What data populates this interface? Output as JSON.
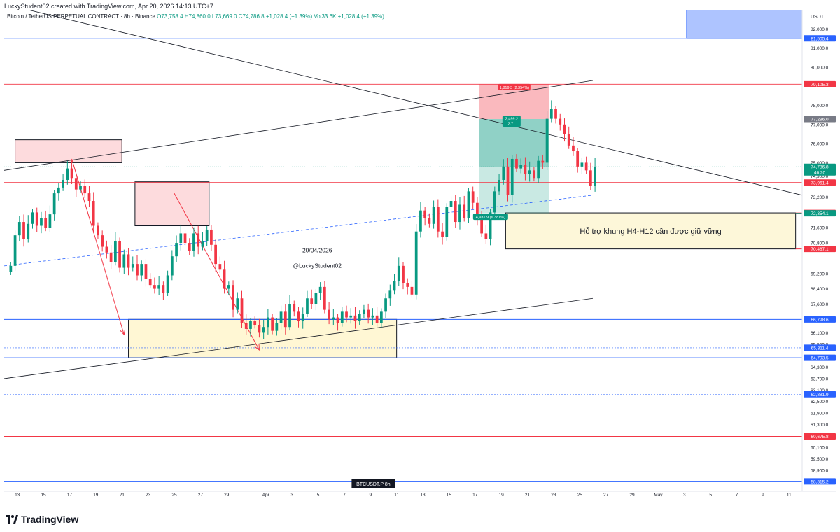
{
  "header": {
    "credit": "LuckyStudent02 created with TradingView.com, Apr 20, 2026 14:13 UTC+7",
    "symbol_line": "Bitcoin / TetherUS PERPETUAL CONTRACT · 8h · Binance",
    "ohlc": "O73,758.4 H74,860.0 L73,669.0 C74,786.8 +1,028.4 (+1.39%) Vol33.6K +1,028.4 (+1.39%)"
  },
  "branding": {
    "name": "TradingView"
  },
  "chart_data": {
    "type": "candlestick",
    "symbol": "BTCUSDT.P",
    "interval": "8h",
    "currency": "USDT",
    "ylim": [
      57800,
      83000
    ],
    "x_start_date": "2026-03-12",
    "x_end_date": "2026-05-12",
    "y_ticks": [
      82000,
      81000,
      80000,
      78000,
      77000,
      76000,
      75000,
      74300,
      73200,
      71600,
      70800,
      69200,
      68400,
      67600,
      66100,
      65500,
      64300,
      63700,
      63100,
      62500,
      61900,
      61300,
      60100,
      59500,
      58900
    ],
    "x_ticks": [
      {
        "label": "13",
        "date": "2026-03-13"
      },
      {
        "label": "15",
        "date": "2026-03-15"
      },
      {
        "label": "17",
        "date": "2026-03-17"
      },
      {
        "label": "19",
        "date": "2026-03-19"
      },
      {
        "label": "21",
        "date": "2026-03-21"
      },
      {
        "label": "23",
        "date": "2026-03-23"
      },
      {
        "label": "25",
        "date": "2026-03-25"
      },
      {
        "label": "27",
        "date": "2026-03-27"
      },
      {
        "label": "29",
        "date": "2026-03-29"
      },
      {
        "label": "Apr",
        "date": "2026-04-01"
      },
      {
        "label": "3",
        "date": "2026-04-03"
      },
      {
        "label": "5",
        "date": "2026-04-05"
      },
      {
        "label": "7",
        "date": "2026-04-07"
      },
      {
        "label": "9",
        "date": "2026-04-09"
      },
      {
        "label": "11",
        "date": "2026-04-11"
      },
      {
        "label": "13",
        "date": "2026-04-13"
      },
      {
        "label": "15",
        "date": "2026-04-15"
      },
      {
        "label": "17",
        "date": "2026-04-17"
      },
      {
        "label": "19",
        "date": "2026-04-19"
      },
      {
        "label": "21",
        "date": "2026-04-21"
      },
      {
        "label": "23",
        "date": "2026-04-23"
      },
      {
        "label": "25",
        "date": "2026-04-25"
      },
      {
        "label": "27",
        "date": "2026-04-27"
      },
      {
        "label": "29",
        "date": "2026-04-29"
      },
      {
        "label": "May",
        "date": "2026-05-01"
      },
      {
        "label": "3",
        "date": "2026-05-03"
      },
      {
        "label": "5",
        "date": "2026-05-05"
      },
      {
        "label": "7",
        "date": "2026-05-07"
      },
      {
        "label": "9",
        "date": "2026-05-09"
      },
      {
        "label": "11",
        "date": "2026-05-11"
      }
    ],
    "closes": [
      69600,
      71200,
      71900,
      71000,
      71800,
      72400,
      71700,
      72100,
      71600,
      72300,
      73400,
      73700,
      74100,
      74700,
      74200,
      73600,
      73800,
      73400,
      73000,
      71700,
      71200,
      70600,
      70300,
      69800,
      70900,
      69500,
      70200,
      69500,
      69700,
      69100,
      69700,
      68900,
      68600,
      68400,
      68600,
      68200,
      69100,
      70100,
      70800,
      71300,
      70800,
      70400,
      71300,
      70600,
      70900,
      71500,
      70700,
      69700,
      69400,
      68400,
      68600,
      67300,
      67900,
      66600,
      66300,
      66700,
      66500,
      66100,
      66400,
      66900,
      66200,
      66600,
      67200,
      66400,
      67600,
      67200,
      66700,
      67100,
      67900,
      67600,
      68200,
      68500,
      67300,
      66800,
      66900,
      66600,
      67200,
      66900,
      67000,
      66700,
      67100,
      67300,
      66900,
      67000,
      66600,
      67200,
      67900,
      68300,
      68800,
      69600,
      68700,
      68500,
      68100,
      71400,
      72500,
      72100,
      71800,
      72700,
      71400,
      71100,
      72700,
      73000,
      71900,
      72800,
      72100,
      73500,
      72900,
      72100,
      71300,
      71000,
      72400,
      73500,
      74100,
      74800,
      73300,
      75200,
      74700,
      74900,
      74400,
      74600,
      74200,
      75100,
      75000,
      77300,
      77800,
      77300,
      77000,
      76500,
      75900,
      75600,
      74800,
      75000,
      74600,
      73800,
      74787
    ],
    "price_labels": [
      {
        "value": "81,505.4",
        "bg": "#2962ff"
      },
      {
        "value": "79,105.3",
        "bg": "#f23645"
      },
      {
        "value": "77,286.0",
        "bg": "#787b86"
      },
      {
        "value": "74,786.8",
        "bg": "#089981",
        "sub": "46:20"
      },
      {
        "value": "73,961.4",
        "bg": "#f23645"
      },
      {
        "value": "72,375.6",
        "bg": "#f23645"
      },
      {
        "value": "72,354.1",
        "bg": "#089981"
      },
      {
        "value": "70,487.1",
        "bg": "#f23645"
      },
      {
        "value": "66,798.6",
        "bg": "#2962ff"
      },
      {
        "value": "65,311.4",
        "bg": "#2962ff"
      },
      {
        "value": "64,793.5",
        "bg": "#2962ff"
      },
      {
        "value": "62,881.9",
        "bg": "#2962ff"
      },
      {
        "value": "60,675.8",
        "bg": "#f23645"
      },
      {
        "value": "58,315.2",
        "bg": "#2962ff"
      }
    ],
    "position": {
      "stop_label": "1,819.3 (2.354%)",
      "ratio_label": "2,499.2",
      "ratio_sub": "2.71",
      "target_label": "4,931.9 (6.381%)"
    },
    "annotations": {
      "support_text": "Hỗ trợ khung H4-H12 cần được giữ vững",
      "date_text": "20/04/2026",
      "author_text": "@LuckyStudent02",
      "symbol_badge": "BTCUSDT.P   8h"
    },
    "colors": {
      "up": "#089981",
      "down": "#f23645",
      "blue": "#2962ff"
    }
  }
}
